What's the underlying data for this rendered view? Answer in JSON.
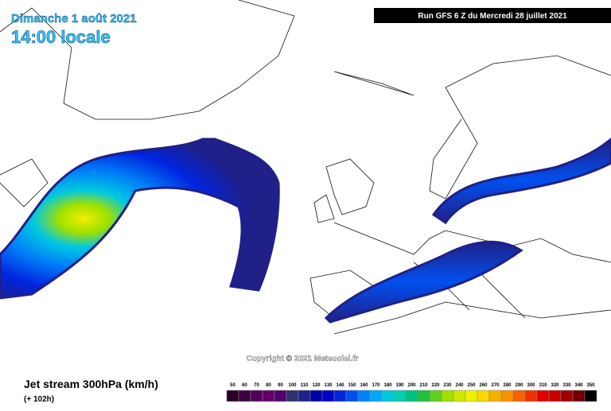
{
  "header": {
    "date": "Dimanche 1 août 2021",
    "time": "14:00 locale",
    "run": "Run GFS 6 Z du Mercredi 28 juillet 2021"
  },
  "copyright": "Copyright © 2021 Meteociel.fr",
  "legend": {
    "title": "Jet stream 300hPa (km/h)",
    "lead": "(+ 102h)",
    "scale": [
      {
        "value": 50,
        "color": "#2a0028"
      },
      {
        "value": 60,
        "color": "#3c0040"
      },
      {
        "value": 70,
        "color": "#500058"
      },
      {
        "value": 80,
        "color": "#620068"
      },
      {
        "value": 90,
        "color": "#500070"
      },
      {
        "value": 100,
        "color": "#303070"
      },
      {
        "value": 110,
        "color": "#202088"
      },
      {
        "value": 120,
        "color": "#0000a0"
      },
      {
        "value": 130,
        "color": "#0000c8"
      },
      {
        "value": 140,
        "color": "#0024e0"
      },
      {
        "value": 150,
        "color": "#0050f0"
      },
      {
        "value": 160,
        "color": "#0080f8"
      },
      {
        "value": 170,
        "color": "#00a8f8"
      },
      {
        "value": 180,
        "color": "#00c8e0"
      },
      {
        "value": 190,
        "color": "#00d0b0"
      },
      {
        "value": 200,
        "color": "#00c080"
      },
      {
        "value": 210,
        "color": "#20c040"
      },
      {
        "value": 220,
        "color": "#60d020"
      },
      {
        "value": 230,
        "color": "#a0e000"
      },
      {
        "value": 240,
        "color": "#d0e800"
      },
      {
        "value": 250,
        "color": "#f0f000"
      },
      {
        "value": 260,
        "color": "#f8d800"
      },
      {
        "value": 270,
        "color": "#f8b000"
      },
      {
        "value": 280,
        "color": "#f89000"
      },
      {
        "value": 290,
        "color": "#f86000"
      },
      {
        "value": 300,
        "color": "#f03000"
      },
      {
        "value": 310,
        "color": "#e00000"
      },
      {
        "value": 320,
        "color": "#c80000"
      },
      {
        "value": 330,
        "color": "#a00000"
      },
      {
        "value": 340,
        "color": "#700000"
      },
      {
        "value": 350,
        "color": "#000000"
      }
    ]
  }
}
